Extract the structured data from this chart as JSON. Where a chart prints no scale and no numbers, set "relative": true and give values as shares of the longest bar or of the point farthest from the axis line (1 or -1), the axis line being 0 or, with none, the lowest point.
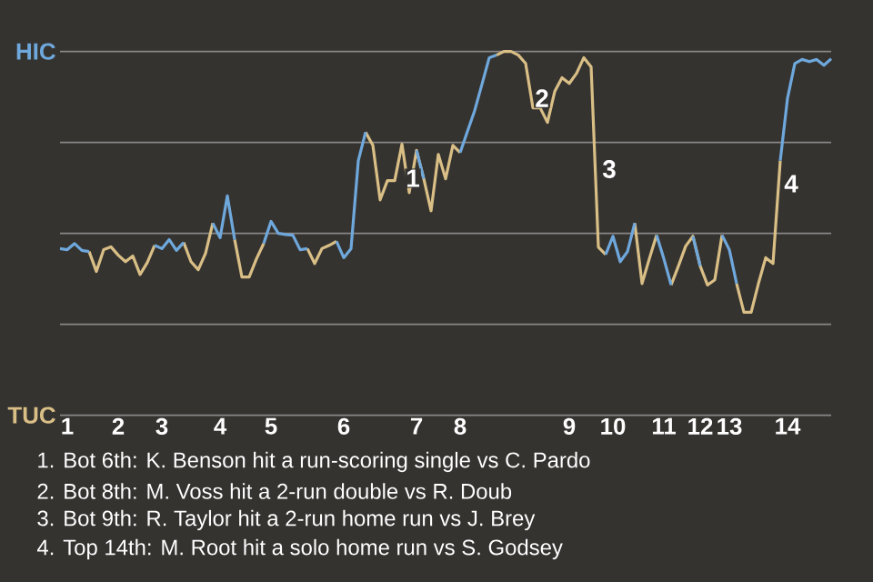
{
  "chart_data": {
    "type": "line",
    "relative": true,
    "categories": [
      null,
      "1",
      null,
      null,
      null,
      null,
      null,
      null,
      "2",
      null,
      null,
      null,
      null,
      null,
      "3",
      null,
      null,
      null,
      null,
      null,
      null,
      null,
      "4",
      null,
      null,
      null,
      null,
      null,
      null,
      "5",
      null,
      null,
      null,
      null,
      null,
      null,
      null,
      null,
      null,
      "6",
      null,
      null,
      null,
      null,
      null,
      null,
      null,
      null,
      null,
      "7",
      null,
      null,
      null,
      null,
      null,
      "8",
      null,
      null,
      null,
      null,
      null,
      null,
      null,
      null,
      null,
      null,
      null,
      null,
      null,
      null,
      "9",
      null,
      null,
      null,
      null,
      null,
      "10",
      null,
      null,
      null,
      null,
      null,
      null,
      "11",
      null,
      null,
      null,
      null,
      "12",
      null,
      null,
      null,
      "13",
      null,
      null,
      null,
      null,
      null,
      null,
      null,
      "14",
      null,
      null,
      null,
      null,
      null,
      null
    ],
    "series": [
      {
        "color": "#d9bf86",
        "values": [
          null,
          null,
          null,
          null,
          0.45,
          0.395,
          0.455,
          0.463,
          0.44,
          0.422,
          0.438,
          0.387,
          0.42,
          0.467,
          null,
          null,
          null,
          0.475,
          0.422,
          0.4,
          0.445,
          0.528,
          null,
          null,
          0.483,
          0.38,
          0.38,
          0.43,
          0.472,
          null,
          null,
          null,
          null,
          null,
          0.458,
          0.417,
          0.458,
          0.467,
          0.478,
          null,
          null,
          null,
          0.778,
          0.742,
          0.592,
          0.645,
          0.645,
          0.745,
          0.612,
          0.728,
          0.65,
          0.562,
          0.717,
          0.65,
          0.742,
          0.722,
          null,
          null,
          null,
          null,
          0.99,
          1,
          1,
          0.99,
          0.967,
          0.845,
          0.845,
          0.805,
          0.89,
          0.928,
          0.912,
          0.94,
          0.983,
          0.958,
          0.462,
          0.442,
          null,
          null,
          null,
          0.528,
          0.362,
          0.43,
          0.495,
          null,
          0.358,
          0.41,
          0.465,
          0.492,
          0.41,
          0.358,
          0.372,
          0.495,
          null,
          0.362,
          0.283,
          0.283,
          0.362,
          0.433,
          0.417,
          0.7,
          null,
          null,
          null,
          null,
          null,
          null,
          null
        ]
      },
      {
        "color": "#6fa8dc",
        "values": [
          0.458,
          0.455,
          0.472,
          0.453,
          0.45,
          null,
          null,
          null,
          null,
          null,
          null,
          null,
          null,
          0.467,
          0.458,
          0.483,
          0.453,
          0.475,
          null,
          null,
          null,
          0.528,
          0.488,
          0.603,
          0.483,
          null,
          null,
          null,
          0.472,
          0.533,
          0.5,
          0.497,
          0.495,
          0.455,
          0.458,
          null,
          null,
          null,
          0.478,
          0.433,
          0.458,
          0.7,
          0.778,
          null,
          null,
          null,
          null,
          null,
          null,
          0.728,
          0.65,
          null,
          null,
          null,
          null,
          0.722,
          0.78,
          0.838,
          0.91,
          0.983,
          0.99,
          null,
          null,
          null,
          null,
          null,
          null,
          null,
          null,
          null,
          null,
          null,
          null,
          null,
          null,
          0.442,
          0.492,
          0.422,
          0.45,
          0.528,
          null,
          null,
          0.495,
          0.43,
          0.358,
          null,
          null,
          0.492,
          0.41,
          null,
          null,
          0.495,
          0.455,
          0.362,
          null,
          null,
          null,
          null,
          null,
          0.7,
          0.872,
          0.967,
          0.978,
          0.972,
          0.978,
          0.962,
          0.98
        ]
      }
    ],
    "ref_lines": [
      {
        "axis": "y",
        "value": 0,
        "label": "TUC",
        "color": "#8a8886"
      },
      {
        "axis": "y",
        "value": 0.25,
        "color": "#8a8886"
      },
      {
        "axis": "y",
        "value": 0.5,
        "color": "#8a8886"
      },
      {
        "axis": "y",
        "value": 0.75,
        "color": "#8a8886"
      },
      {
        "axis": "y",
        "value": 1,
        "label": "HIC",
        "color": "#8a8886"
      }
    ],
    "annotations": [
      "1",
      "2",
      "3",
      "4",
      "1. Bot 6th: K. Benson hit a run-scoring single vs C. Pardo",
      "2. Bot 8th: M. Voss hit a 2-run double vs R. Doub",
      "3. Bot 9th: R. Taylor hit a 2-run home run vs J. Brey",
      "4. Top 14th: M. Root hit a solo home run vs S. Godsey"
    ]
  }
}
